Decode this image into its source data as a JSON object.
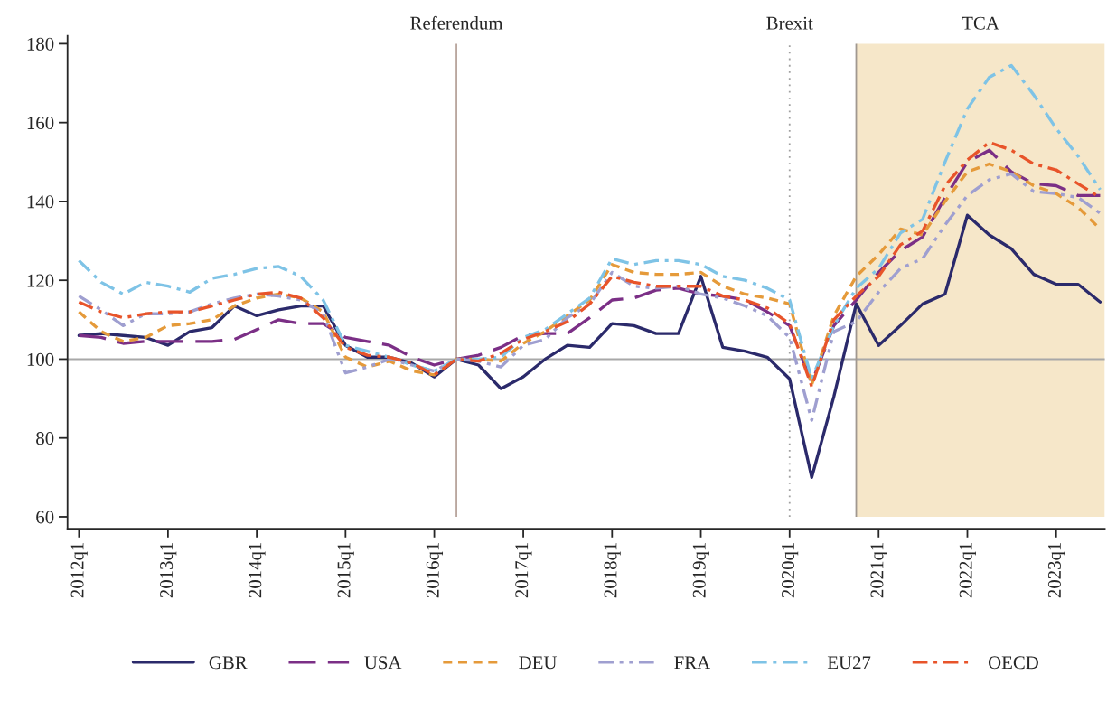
{
  "chart_data": {
    "type": "line",
    "x": [
      "2012-01",
      "2012-04",
      "2012-07",
      "2012-10",
      "2013-01",
      "2013-04",
      "2013-07",
      "2013-10",
      "2014-01",
      "2014-04",
      "2014-07",
      "2014-10",
      "2015-01",
      "2015-04",
      "2015-07",
      "2015-10",
      "2016-01",
      "2016-04",
      "2016-07",
      "2016-10",
      "2017-01",
      "2017-04",
      "2017-07",
      "2017-10",
      "2018-01",
      "2018-04",
      "2018-07",
      "2018-10",
      "2019-01",
      "2019-04",
      "2019-07",
      "2019-10",
      "2020-01",
      "2020-04",
      "2020-07",
      "2020-10",
      "2021-01",
      "2021-04",
      "2021-07",
      "2021-10",
      "2022-01",
      "2022-04",
      "2022-07",
      "2022-10",
      "2023-01",
      "2023-04",
      "2023-07"
    ],
    "series": [
      {
        "name": "GBR",
        "color": "#2b2a6b",
        "line_style": "solid",
        "values": [
          106,
          106.5,
          106,
          105.5,
          103.5,
          107,
          108,
          113.5,
          111,
          112.5,
          113.5,
          113.5,
          103.5,
          100.5,
          100.5,
          99,
          95.5,
          100,
          98.5,
          92.5,
          95.5,
          100,
          103.5,
          103,
          109,
          108.5,
          106.5,
          106.5,
          121,
          103,
          102,
          100.5,
          95,
          70,
          90.5,
          114,
          103.5,
          108.5,
          114,
          116.5,
          136.5,
          131.5,
          128,
          121.5,
          119,
          119,
          114.5
        ]
      },
      {
        "name": "USA",
        "color": "#7b2f86",
        "line_style": "dashed",
        "values": [
          106,
          105.5,
          104,
          104.5,
          104.5,
          104.5,
          104.5,
          105,
          107.5,
          110,
          109,
          109,
          105.5,
          104.5,
          103.5,
          100.5,
          98.5,
          100,
          101,
          103,
          106,
          106.5,
          106.5,
          110.5,
          115,
          115.5,
          117.5,
          118,
          116.5,
          116,
          115,
          112,
          108.5,
          94,
          108.5,
          115,
          122,
          127.5,
          131,
          141,
          150,
          153,
          147.5,
          144.5,
          144,
          141.5,
          141.5
        ]
      },
      {
        "name": "DEU",
        "color": "#e59a3a",
        "line_style": "dotted",
        "values": [
          112,
          107,
          104.5,
          105.5,
          108.5,
          109,
          110,
          113.5,
          115.5,
          116.5,
          115.5,
          112,
          100.5,
          98,
          99.5,
          97,
          96,
          100,
          100,
          99.5,
          104,
          107,
          111,
          115,
          124,
          122,
          121.5,
          121.5,
          122,
          118.5,
          116.5,
          115.5,
          114,
          93.5,
          111,
          121,
          126.5,
          133,
          131.5,
          140,
          147.5,
          149.5,
          147.5,
          144,
          142,
          138.5,
          133
        ]
      },
      {
        "name": "FRA",
        "color": "#9f9fd0",
        "line_style": "dashdotdot",
        "values": [
          116,
          112.5,
          108.5,
          111.5,
          111.5,
          112,
          114,
          115.5,
          116.5,
          116,
          115,
          111.5,
          96.5,
          98,
          100,
          98.5,
          97,
          100,
          99.5,
          98,
          103.5,
          105,
          110.5,
          114,
          122,
          118.5,
          118,
          118.5,
          116.5,
          115.5,
          113.5,
          111,
          105.5,
          84.5,
          107,
          109.5,
          117,
          123,
          125.5,
          134,
          141.5,
          145.5,
          147,
          142.5,
          142,
          141,
          137
        ]
      },
      {
        "name": "EU27",
        "color": "#7ec3e6",
        "line_style": "dashdot",
        "values": [
          125,
          119.5,
          116.5,
          119.5,
          118.5,
          117,
          120.5,
          121.5,
          123,
          123.5,
          121,
          115,
          103.5,
          102,
          100.5,
          98.5,
          97,
          100,
          100,
          100.5,
          105.5,
          107.5,
          111.5,
          115.5,
          125.5,
          124,
          125,
          125,
          124,
          121,
          120,
          118,
          115,
          95,
          108.5,
          118,
          123,
          132,
          135.5,
          150,
          163.5,
          171.5,
          174.5,
          167,
          158.5,
          151.5,
          143
        ]
      },
      {
        "name": "OECD",
        "color": "#e8542a",
        "line_style": "dashdot",
        "values": [
          114.5,
          112,
          110.5,
          111.5,
          112,
          112,
          113.5,
          115,
          116.5,
          117,
          115.5,
          110.5,
          103,
          101,
          100.5,
          99,
          96,
          100,
          99.5,
          101.5,
          105,
          107,
          109.5,
          114,
          121,
          119.5,
          118.5,
          118.5,
          118.5,
          116,
          115,
          113,
          109,
          93,
          110,
          116,
          121,
          129,
          132.5,
          144,
          150.5,
          155,
          153,
          149.5,
          148,
          144.5,
          141
        ]
      }
    ],
    "xlim": [
      "2011-11-15",
      "2023-07-20"
    ],
    "xticks": [
      {
        "value": "2012-01",
        "label": "2012q1"
      },
      {
        "value": "2013-01",
        "label": "2013q1"
      },
      {
        "value": "2014-01",
        "label": "2014q1"
      },
      {
        "value": "2015-01",
        "label": "2015q1"
      },
      {
        "value": "2016-01",
        "label": "2016q1"
      },
      {
        "value": "2017-01",
        "label": "2017q1"
      },
      {
        "value": "2018-01",
        "label": "2018q1"
      },
      {
        "value": "2019-01",
        "label": "2019q1"
      },
      {
        "value": "2020-01",
        "label": "2020q1"
      },
      {
        "value": "2021-01",
        "label": "2021q1"
      },
      {
        "value": "2022-01",
        "label": "2022q1"
      },
      {
        "value": "2023-01",
        "label": "2023q1"
      }
    ],
    "ylim": [
      57,
      182
    ],
    "yticks": [
      60,
      80,
      100,
      120,
      140,
      160,
      180
    ],
    "ref_lines": [
      {
        "axis": "y",
        "value": 100,
        "color": "#a8a8a8",
        "line_style": "solid"
      },
      {
        "axis": "x",
        "value": "2016-04",
        "label": "Referendum",
        "color": "#b8a49c",
        "line_style": "solid"
      },
      {
        "axis": "x",
        "value": "2020-01",
        "label": "Brexit",
        "color": "#a0a0a0",
        "line_style": "dotted"
      },
      {
        "axis": "x",
        "value": "2020-10",
        "color": "#a09890",
        "line_style": "solid"
      }
    ],
    "bands": [
      {
        "axis": "x",
        "from": "2020-10",
        "to": "2023-07-20",
        "label": "TCA",
        "color": "#f6e7c9"
      }
    ],
    "grid": false,
    "legend": "bottom"
  }
}
